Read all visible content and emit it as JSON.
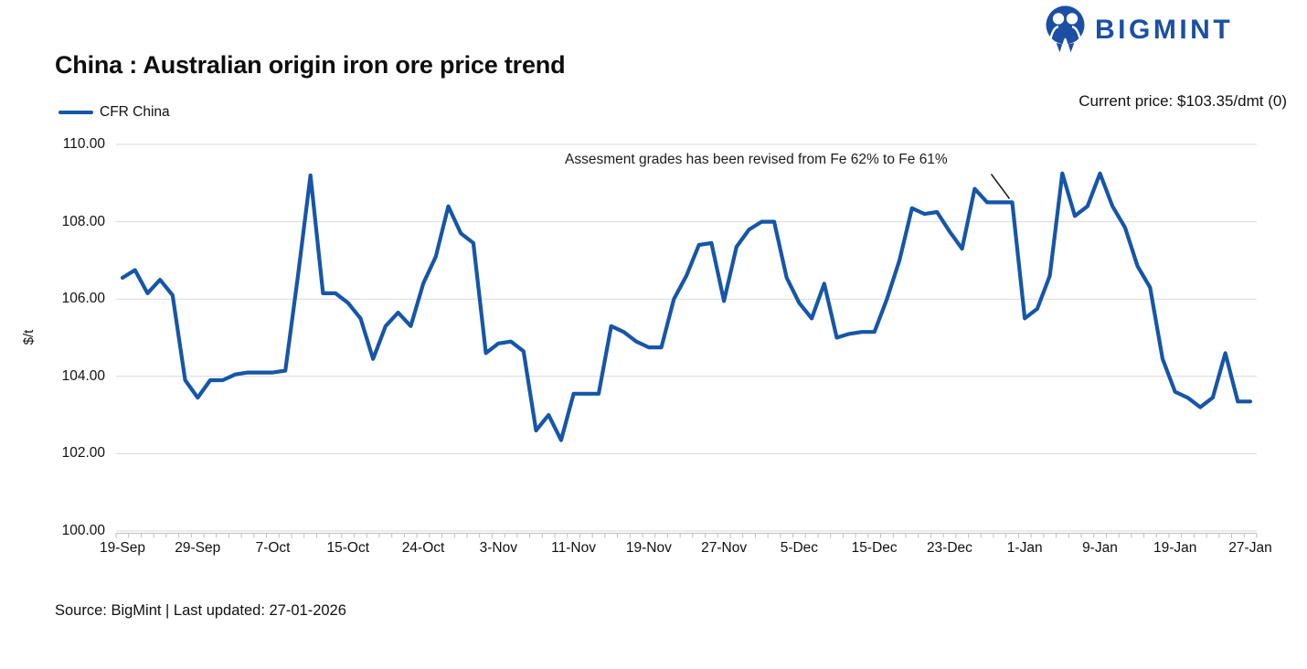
{
  "brand": {
    "name": "BIGMINT"
  },
  "header": {
    "title": "China : Australian origin iron ore price trend",
    "current_price": "Current price: $103.35/dmt (0)"
  },
  "legend": {
    "label": "CFR China"
  },
  "footer": {
    "source": "Source: BigMint | Last updated: 27-01-2026"
  },
  "colors": {
    "line": "#1656A8",
    "logo": "#1A4FA4",
    "grid": "#D9D9D9",
    "axis": "#BFBFBF",
    "pointer": "#1a1a1a"
  },
  "chart_data": {
    "type": "line",
    "title": "China : Australian origin iron ore price trend",
    "ylabel": "$/t",
    "ylim": [
      100,
      110
    ],
    "y_tick_labels": [
      "100.00",
      "102.00",
      "104.00",
      "106.00",
      "108.00",
      "110.00"
    ],
    "x_tick_labels": [
      "19-Sep",
      "29-Sep",
      "7-Oct",
      "15-Oct",
      "24-Oct",
      "3-Nov",
      "11-Nov",
      "19-Nov",
      "27-Nov",
      "5-Dec",
      "15-Dec",
      "23-Dec",
      "1-Jan",
      "9-Jan",
      "19-Jan",
      "27-Jan"
    ],
    "grid": "horizontal",
    "legend_position": "top-left",
    "current_price": {
      "value": 103.35,
      "unit": "$/dmt",
      "change": 0
    },
    "annotation": {
      "text": "Assesment grades has been revised from Fe 62% to Fe 61%",
      "target_index": 71,
      "target_value": 108.5
    },
    "series": [
      {
        "name": "CFR China",
        "color": "#1656A8",
        "values": [
          106.55,
          106.75,
          106.15,
          106.5,
          106.1,
          103.9,
          103.45,
          103.9,
          103.9,
          104.05,
          104.1,
          104.1,
          104.1,
          104.15,
          106.6,
          109.2,
          106.15,
          106.15,
          105.9,
          105.5,
          104.45,
          105.3,
          105.65,
          105.3,
          106.4,
          107.1,
          108.4,
          107.7,
          107.45,
          104.6,
          104.85,
          104.9,
          104.65,
          102.6,
          103.0,
          102.35,
          103.55,
          103.55,
          103.55,
          105.3,
          105.15,
          104.9,
          104.75,
          104.75,
          106.0,
          106.6,
          107.4,
          107.45,
          105.95,
          107.35,
          107.8,
          108.0,
          108.0,
          106.55,
          105.9,
          105.5,
          106.4,
          105.0,
          105.1,
          105.15,
          105.15,
          106.0,
          107.0,
          108.35,
          108.2,
          108.25,
          107.75,
          107.3,
          108.85,
          108.5,
          108.5,
          108.5,
          105.5,
          105.75,
          106.6,
          109.25,
          108.15,
          108.4,
          109.25,
          108.4,
          107.85,
          106.85,
          106.3,
          104.45,
          103.6,
          103.45,
          103.2,
          103.45,
          104.6,
          103.35,
          103.35
        ]
      }
    ]
  }
}
